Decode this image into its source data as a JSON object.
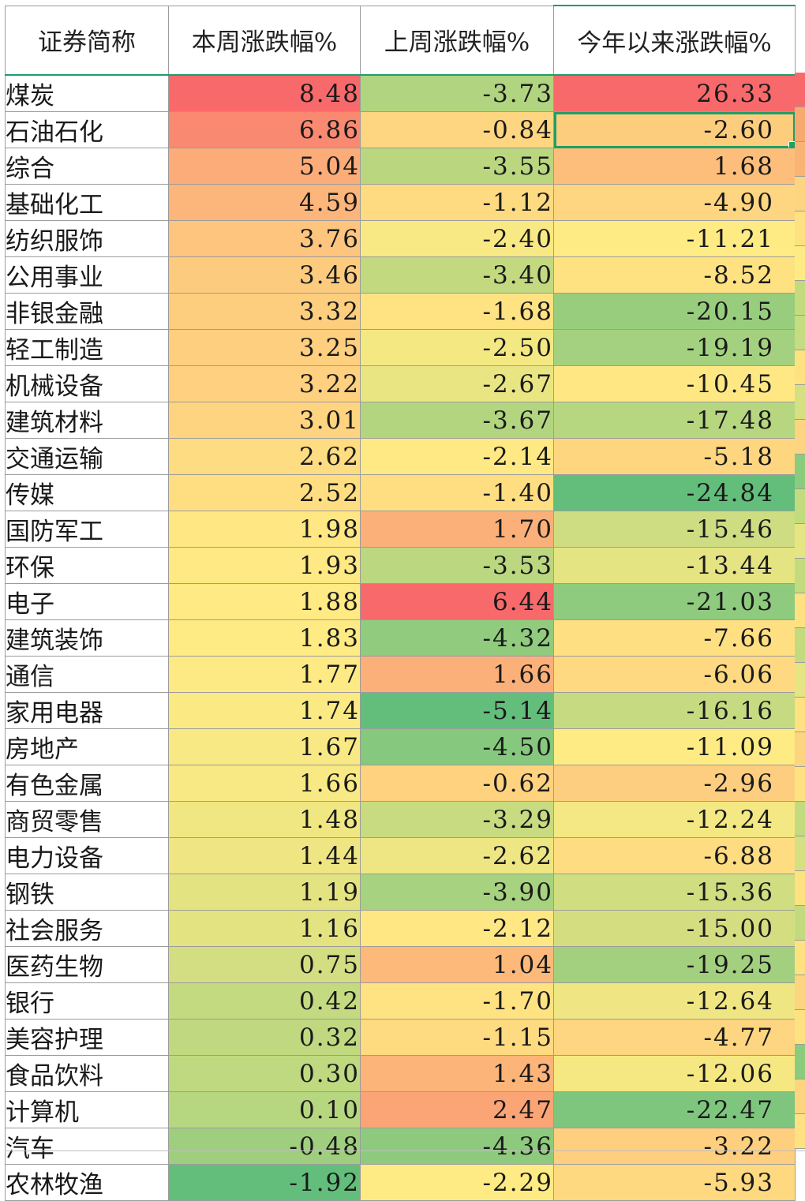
{
  "headers": [
    "证券简称",
    "本周涨跌幅%",
    "上周涨跌幅%",
    "今年以来涨跌幅%"
  ],
  "selected_cell": {
    "row": 1,
    "column": 3
  },
  "rows": [
    {
      "name": "煤炭",
      "this_week": "8.48",
      "last_week": "-3.73",
      "ytd": "26.33"
    },
    {
      "name": "石油石化",
      "this_week": "6.86",
      "last_week": "-0.84",
      "ytd": "-2.60"
    },
    {
      "name": "综合",
      "this_week": "5.04",
      "last_week": "-3.55",
      "ytd": "1.68"
    },
    {
      "name": "基础化工",
      "this_week": "4.59",
      "last_week": "-1.12",
      "ytd": "-4.90"
    },
    {
      "name": "纺织服饰",
      "this_week": "3.76",
      "last_week": "-2.40",
      "ytd": "-11.21"
    },
    {
      "name": "公用事业",
      "this_week": "3.46",
      "last_week": "-3.40",
      "ytd": "-8.52"
    },
    {
      "name": "非银金融",
      "this_week": "3.32",
      "last_week": "-1.68",
      "ytd": "-20.15"
    },
    {
      "name": "轻工制造",
      "this_week": "3.25",
      "last_week": "-2.50",
      "ytd": "-19.19"
    },
    {
      "name": "机械设备",
      "this_week": "3.22",
      "last_week": "-2.67",
      "ytd": "-10.45"
    },
    {
      "name": "建筑材料",
      "this_week": "3.01",
      "last_week": "-3.67",
      "ytd": "-17.48"
    },
    {
      "name": "交通运输",
      "this_week": "2.62",
      "last_week": "-2.14",
      "ytd": "-5.18"
    },
    {
      "name": "传媒",
      "this_week": "2.52",
      "last_week": "-1.40",
      "ytd": "-24.84"
    },
    {
      "name": "国防军工",
      "this_week": "1.98",
      "last_week": "1.70",
      "ytd": "-15.46"
    },
    {
      "name": "环保",
      "this_week": "1.93",
      "last_week": "-3.53",
      "ytd": "-13.44"
    },
    {
      "name": "电子",
      "this_week": "1.88",
      "last_week": "6.44",
      "ytd": "-21.03"
    },
    {
      "name": "建筑装饰",
      "this_week": "1.83",
      "last_week": "-4.32",
      "ytd": "-7.66"
    },
    {
      "name": "通信",
      "this_week": "1.77",
      "last_week": "1.66",
      "ytd": "-6.06"
    },
    {
      "name": "家用电器",
      "this_week": "1.74",
      "last_week": "-5.14",
      "ytd": "-16.16"
    },
    {
      "name": "房地产",
      "this_week": "1.67",
      "last_week": "-4.50",
      "ytd": "-11.09"
    },
    {
      "name": "有色金属",
      "this_week": "1.66",
      "last_week": "-0.62",
      "ytd": "-2.96"
    },
    {
      "name": "商贸零售",
      "this_week": "1.48",
      "last_week": "-3.29",
      "ytd": "-12.24"
    },
    {
      "name": "电力设备",
      "this_week": "1.44",
      "last_week": "-2.62",
      "ytd": "-6.88"
    },
    {
      "name": "钢铁",
      "this_week": "1.19",
      "last_week": "-3.90",
      "ytd": "-15.36"
    },
    {
      "name": "社会服务",
      "this_week": "1.16",
      "last_week": "-2.12",
      "ytd": "-15.00"
    },
    {
      "name": "医药生物",
      "this_week": "0.75",
      "last_week": "1.04",
      "ytd": "-19.25"
    },
    {
      "name": "银行",
      "this_week": "0.42",
      "last_week": "-1.70",
      "ytd": "-12.64"
    },
    {
      "name": "美容护理",
      "this_week": "0.32",
      "last_week": "-1.15",
      "ytd": "-4.77"
    },
    {
      "name": "食品饮料",
      "this_week": "0.30",
      "last_week": "1.43",
      "ytd": "-12.06"
    },
    {
      "name": "计算机",
      "this_week": "0.10",
      "last_week": "2.47",
      "ytd": "-22.47"
    },
    {
      "name": "汽车",
      "this_week": "-0.48",
      "last_week": "-4.36",
      "ytd": "-3.22"
    },
    {
      "name": "农林牧渔",
      "this_week": "-1.92",
      "last_week": "-2.29",
      "ytd": "-5.93"
    }
  ],
  "color_scale": {
    "high": "#f8696b",
    "mid": "#ffeb84",
    "low": "#63be7b"
  },
  "edge_column_colors": [
    "#f8696b",
    "#f8a970",
    "#f9b475",
    "#fdd47f",
    "#fee282",
    "#ffeb84",
    "#c2db7f",
    "#c6dc80",
    "#fee282",
    "#d4e081",
    "#fdd47f",
    "#8bcb7e",
    "#c2db7f",
    "#e6e583",
    "#c2db7f",
    "#fee282",
    "#c2db7f",
    "#e6e583",
    "#fee282",
    "#fdd47f",
    "#fee282",
    "#c2db7f",
    "#d4e081",
    "#fee282",
    "#c2db7f",
    "#fee282",
    "#fdd47f",
    "#fee282",
    "#8bcb7e",
    "#fdd47f",
    "#fee282"
  ]
}
